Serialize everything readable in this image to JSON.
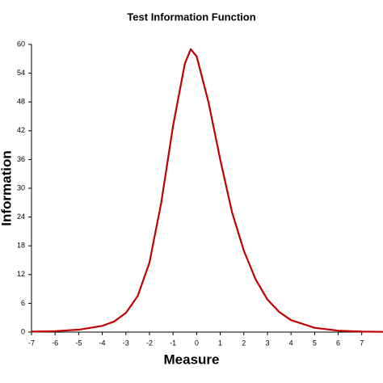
{
  "chart_data": {
    "type": "line",
    "title": "Test Information Function",
    "x_label": "Measure",
    "y_label": "Information",
    "x": [
      -7,
      -6,
      -5,
      -4,
      -3.5,
      -3,
      -2.5,
      -2,
      -1.5,
      -1,
      -0.5,
      -0.25,
      0,
      0.5,
      1,
      1.5,
      2,
      2.5,
      3,
      3.5,
      4,
      5,
      6,
      7,
      7.9
    ],
    "series": [
      {
        "name": "Information",
        "color": "#c00000",
        "values": [
          0.1,
          0.2,
          0.5,
          1.3,
          2.2,
          4,
          7.5,
          14.5,
          27,
          43,
          56,
          59,
          57.5,
          48,
          36,
          25,
          17,
          11,
          6.8,
          4.2,
          2.5,
          0.9,
          0.3,
          0.1,
          0.05
        ]
      }
    ],
    "xlim": [
      -7,
      7.9
    ],
    "ylim": [
      0,
      60
    ],
    "xticks": [
      -7,
      -6,
      -5,
      -4,
      -3,
      -2,
      -1,
      0,
      1,
      2,
      3,
      4,
      5,
      6,
      7
    ],
    "yticks": [
      0,
      6,
      12,
      18,
      24,
      30,
      36,
      42,
      48,
      54,
      60
    ]
  }
}
